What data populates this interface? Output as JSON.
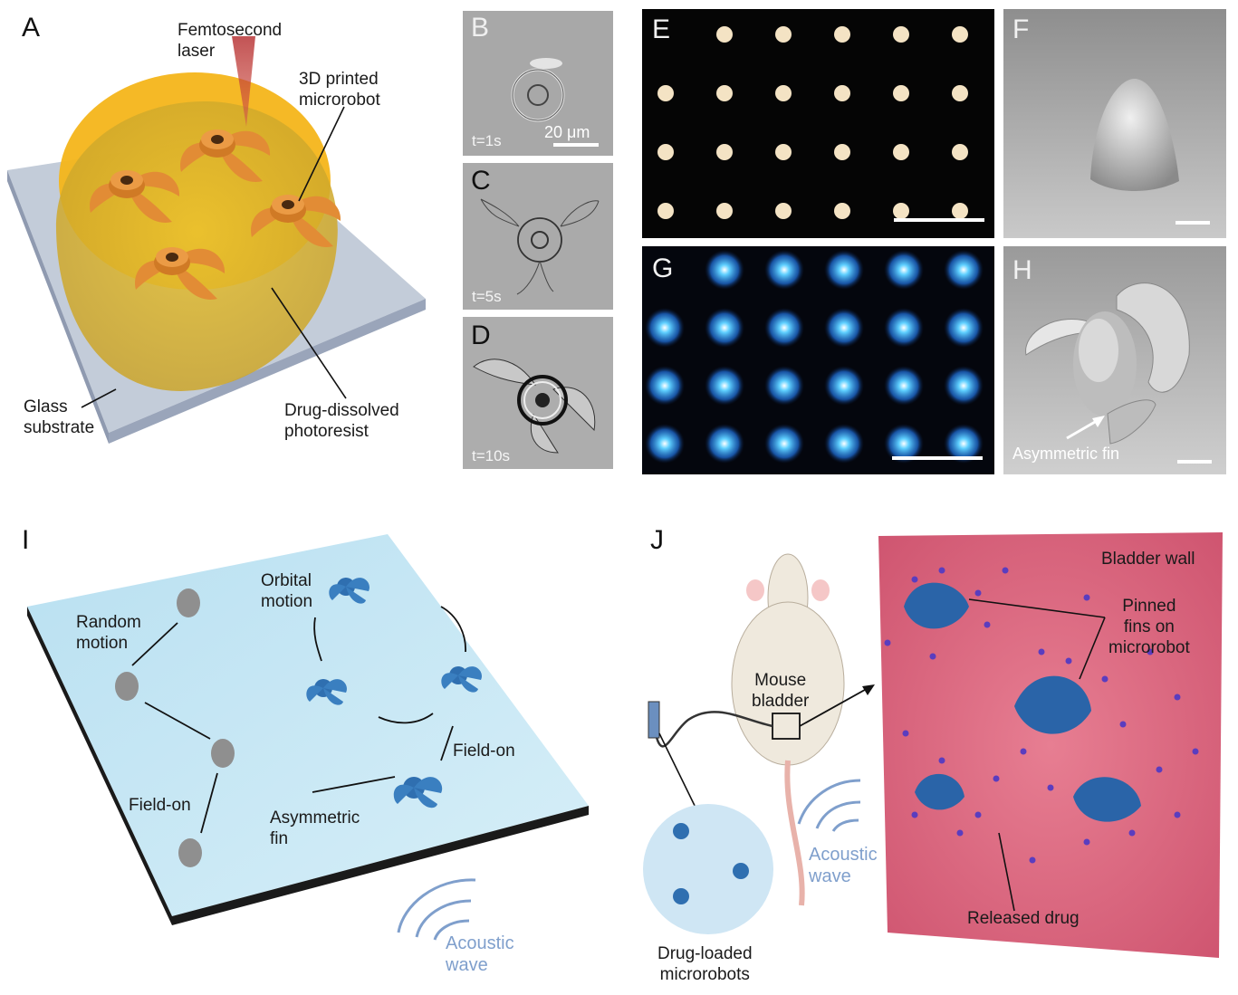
{
  "panel_letters": {
    "a": "A",
    "b": "B",
    "c": "C",
    "d": "D",
    "e": "E",
    "f": "F",
    "g": "G",
    "h": "H",
    "i": "I",
    "j": "J"
  },
  "panel_a": {
    "laser": "Femtosecond\nlaser",
    "microrobot": "3D printed\nmicrorobot",
    "glass": "Glass\nsubstrate",
    "photoresist": "Drug-dissolved\nphotoresist"
  },
  "panels_bcd": {
    "scale_bar": "20 μm",
    "times": [
      "t=1s",
      "t=5s",
      "t=10s"
    ]
  },
  "panel_h": {
    "fin_label": "Asymmetric fin"
  },
  "panel_i": {
    "random_motion": "Random\nmotion",
    "orbital_motion": "Orbital\nmotion",
    "field_on_left": "Field-on",
    "field_on_right": "Field-on",
    "asymmetric_fin": "Asymmetric\nfin",
    "acoustic_wave": "Acoustic\nwave"
  },
  "panel_j": {
    "bladder_wall": "Bladder wall",
    "pinned_fins": "Pinned\nfins on\nmicrorobot",
    "mouse_bladder": "Mouse\nbladder",
    "acoustic_wave": "Acoustic\nwave",
    "released_drug": "Released drug",
    "drug_loaded": "Drug-loaded\nmicrorobots"
  },
  "colors": {
    "orange_robot": "#e08a2e",
    "photoresist": "#f2b21e",
    "glass": "#b8c2d2",
    "blue_robot": "#2f6fb0",
    "acoustic": "#7f9fcc",
    "bladder": "#d9617a",
    "plate_i": "#bfe3f3"
  }
}
